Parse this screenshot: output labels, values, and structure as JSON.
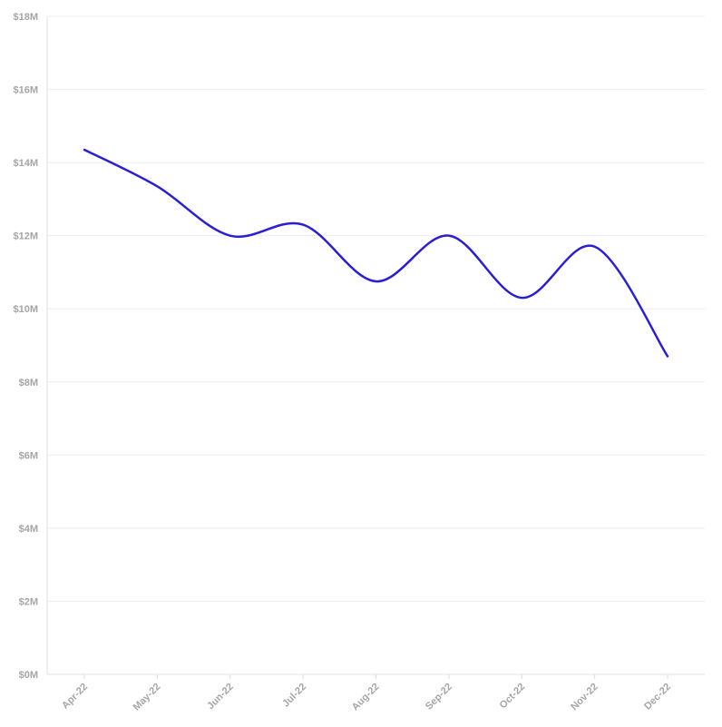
{
  "chart_data": {
    "type": "line",
    "title": "",
    "xlabel": "",
    "ylabel": "",
    "categories": [
      "Apr-22",
      "May-22",
      "Jun-22",
      "Jul-22",
      "Aug-22",
      "Sep-22",
      "Oct-22",
      "Nov-22",
      "Dec-22"
    ],
    "series": [
      {
        "values": [
          14.35,
          13.35,
          12.0,
          12.3,
          10.75,
          12.0,
          10.3,
          11.7,
          8.7
        ],
        "color": "#2a1fd4"
      }
    ],
    "ylim": [
      0,
      18
    ],
    "y_ticks": [
      0,
      2,
      4,
      6,
      8,
      10,
      12,
      14,
      16,
      18
    ],
    "y_tick_labels": [
      "$0M",
      "$2M",
      "$4M",
      "$6M",
      "$8M",
      "$10M",
      "$12M",
      "$14M",
      "$16M",
      "$18M"
    ],
    "grid": true,
    "legend": "none",
    "curve": "smooth"
  }
}
